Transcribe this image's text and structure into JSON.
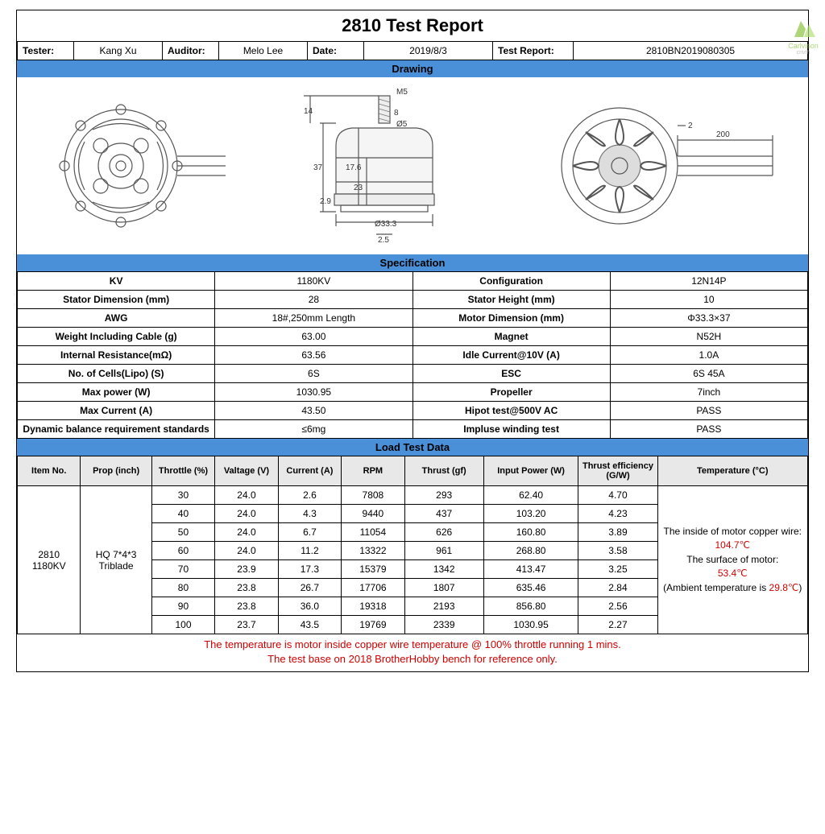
{
  "watermark": {
    "line1": "Carlvison",
    "line2": "crivth",
    "color": "#8cc63f"
  },
  "title": "2810 Test Report",
  "header": {
    "tester_lbl": "Tester:",
    "tester": "Kang Xu",
    "auditor_lbl": "Auditor:",
    "auditor": "Melo Lee",
    "date_lbl": "Date:",
    "date": "2019/8/3",
    "report_lbl": "Test Report:",
    "report": "2810BN2019080305"
  },
  "sections": {
    "drawing": "Drawing",
    "spec": "Specification",
    "load": "Load Test Data"
  },
  "drawing_dims": {
    "M5": "M5",
    "d8": "8",
    "d14": "14",
    "d5": "Ø5",
    "d37": "37",
    "d176": "17.6",
    "d23": "23",
    "d333": "Ø33.3",
    "d29": "2.9",
    "d25": "2.5",
    "d200": "200",
    "d2": "2"
  },
  "spec": [
    {
      "l1": "KV",
      "v1": "1180KV",
      "l2": "Configuration",
      "v2": "12N14P"
    },
    {
      "l1": "Stator Dimension (mm)",
      "v1": "28",
      "l2": "Stator Height (mm)",
      "v2": "10"
    },
    {
      "l1": "AWG",
      "v1": "18#,250mm Length",
      "l2": "Motor Dimension (mm)",
      "v2": "Φ33.3×37"
    },
    {
      "l1": "Weight Including Cable (g)",
      "v1": "63.00",
      "l2": "Magnet",
      "v2": "N52H"
    },
    {
      "l1": "Internal Resistance(mΩ)",
      "v1": "63.56",
      "l2": "Idle Current@10V (A)",
      "v2": "1.0A"
    },
    {
      "l1": "No. of Cells(Lipo) (S)",
      "v1": "6S",
      "l2": "ESC",
      "v2": "6S 45A"
    },
    {
      "l1": "Max power (W)",
      "v1": "1030.95",
      "l2": "Propeller",
      "v2": "7inch"
    },
    {
      "l1": "Max Current (A)",
      "v1": "43.50",
      "l2": "Hipot test@500V AC",
      "v2": "PASS"
    },
    {
      "l1": "Dynamic balance requirement standards",
      "v1": "≤6mg",
      "l2": "Impluse winding test",
      "v2": "PASS"
    }
  ],
  "load": {
    "cols": [
      "Item No.",
      "Prop (inch)",
      "Throttle (%)",
      "Valtage (V)",
      "Current (A)",
      "RPM",
      "Thrust (gf)",
      "Input Power (W)",
      "Thrust efficiency (G/W)",
      "Temperature (°C)"
    ],
    "item": "2810\n1180KV",
    "prop": "HQ 7*4*3 Triblade",
    "rows": [
      {
        "thr": "30",
        "v": "24.0",
        "a": "2.6",
        "rpm": "7808",
        "thrust": "293",
        "pw": "62.40",
        "eff": "4.70"
      },
      {
        "thr": "40",
        "v": "24.0",
        "a": "4.3",
        "rpm": "9440",
        "thrust": "437",
        "pw": "103.20",
        "eff": "4.23"
      },
      {
        "thr": "50",
        "v": "24.0",
        "a": "6.7",
        "rpm": "11054",
        "thrust": "626",
        "pw": "160.80",
        "eff": "3.89"
      },
      {
        "thr": "60",
        "v": "24.0",
        "a": "11.2",
        "rpm": "13322",
        "thrust": "961",
        "pw": "268.80",
        "eff": "3.58"
      },
      {
        "thr": "70",
        "v": "23.9",
        "a": "17.3",
        "rpm": "15379",
        "thrust": "1342",
        "pw": "413.47",
        "eff": "3.25"
      },
      {
        "thr": "80",
        "v": "23.8",
        "a": "26.7",
        "rpm": "17706",
        "thrust": "1807",
        "pw": "635.46",
        "eff": "2.84"
      },
      {
        "thr": "90",
        "v": "23.8",
        "a": "36.0",
        "rpm": "19318",
        "thrust": "2193",
        "pw": "856.80",
        "eff": "2.56"
      },
      {
        "thr": "100",
        "v": "23.7",
        "a": "43.5",
        "rpm": "19769",
        "thrust": "2339",
        "pw": "1030.95",
        "eff": "2.27"
      }
    ],
    "temp": {
      "t1": "The inside of motor copper wire:",
      "v1": "104.7℃",
      "t2": "The surface of motor:",
      "v2": "53.4℃",
      "t3a": "(Ambient temperature is ",
      "v3": "29.8℃",
      "t3b": ")"
    }
  },
  "footnote": {
    "l1": "The temperature is motor inside copper wire temperature @ 100% throttle running 1 mins.",
    "l2": "The test base on 2018 BrotherHobby bench  for reference only."
  },
  "colors": {
    "section_bg": "#4a90d9",
    "border": "#000000",
    "red": "#d00000"
  }
}
